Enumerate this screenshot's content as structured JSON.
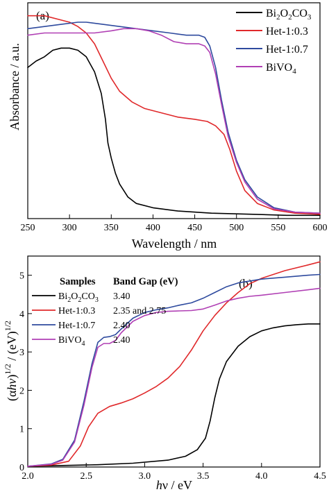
{
  "chart_data": [
    {
      "panel_label": "(a)",
      "type": "line",
      "xlabel": "Wavelength / nm",
      "ylabel": "Absorbance / a.u.",
      "xlim": [
        250,
        600
      ],
      "ylim": [
        0,
        1.0
      ],
      "x_ticks": [
        250,
        300,
        350,
        400,
        450,
        500,
        550,
        600
      ],
      "y_ticks": [],
      "grid": false,
      "legend_position": "top-right",
      "series": [
        {
          "name": "Bi2O2CO3",
          "name_base": "Bi",
          "name_sub1": "2",
          "name_mid": "O",
          "name_sub2": "2",
          "name_tail": "CO",
          "name_sub3": "3",
          "color": "#000000",
          "points": [
            [
              250,
              0.7
            ],
            [
              260,
              0.73
            ],
            [
              270,
              0.75
            ],
            [
              280,
              0.78
            ],
            [
              290,
              0.79
            ],
            [
              300,
              0.79
            ],
            [
              310,
              0.78
            ],
            [
              320,
              0.75
            ],
            [
              330,
              0.68
            ],
            [
              338,
              0.58
            ],
            [
              343,
              0.46
            ],
            [
              346,
              0.35
            ],
            [
              350,
              0.28
            ],
            [
              355,
              0.21
            ],
            [
              360,
              0.16
            ],
            [
              370,
              0.1
            ],
            [
              380,
              0.07
            ],
            [
              400,
              0.05
            ],
            [
              430,
              0.035
            ],
            [
              470,
              0.025
            ],
            [
              520,
              0.02
            ],
            [
              560,
              0.015
            ],
            [
              600,
              0.015
            ]
          ]
        },
        {
          "name": "Het-1:0.3",
          "color": "#e0282a",
          "points": [
            [
              250,
              0.94
            ],
            [
              270,
              0.94
            ],
            [
              290,
              0.92
            ],
            [
              300,
              0.91
            ],
            [
              310,
              0.89
            ],
            [
              320,
              0.86
            ],
            [
              330,
              0.81
            ],
            [
              340,
              0.73
            ],
            [
              350,
              0.65
            ],
            [
              360,
              0.59
            ],
            [
              375,
              0.54
            ],
            [
              390,
              0.51
            ],
            [
              410,
              0.49
            ],
            [
              430,
              0.47
            ],
            [
              450,
              0.46
            ],
            [
              465,
              0.45
            ],
            [
              475,
              0.43
            ],
            [
              485,
              0.39
            ],
            [
              492,
              0.32
            ],
            [
              500,
              0.22
            ],
            [
              510,
              0.13
            ],
            [
              525,
              0.07
            ],
            [
              545,
              0.04
            ],
            [
              570,
              0.025
            ],
            [
              600,
              0.02
            ]
          ]
        },
        {
          "name": "Het-1:0.7",
          "color": "#2e4a9e",
          "points": [
            [
              250,
              0.88
            ],
            [
              270,
              0.89
            ],
            [
              290,
              0.9
            ],
            [
              310,
              0.91
            ],
            [
              320,
              0.91
            ],
            [
              340,
              0.9
            ],
            [
              360,
              0.89
            ],
            [
              380,
              0.88
            ],
            [
              400,
              0.87
            ],
            [
              420,
              0.86
            ],
            [
              440,
              0.85
            ],
            [
              455,
              0.85
            ],
            [
              462,
              0.84
            ],
            [
              468,
              0.8
            ],
            [
              475,
              0.7
            ],
            [
              482,
              0.55
            ],
            [
              490,
              0.4
            ],
            [
              500,
              0.27
            ],
            [
              510,
              0.18
            ],
            [
              525,
              0.1
            ],
            [
              545,
              0.05
            ],
            [
              570,
              0.03
            ],
            [
              600,
              0.025
            ]
          ]
        },
        {
          "name": "BiVO4",
          "name_base": "BiVO",
          "name_sub1": "4",
          "color": "#b03fb4",
          "points": [
            [
              250,
              0.85
            ],
            [
              270,
              0.86
            ],
            [
              290,
              0.86
            ],
            [
              310,
              0.86
            ],
            [
              330,
              0.86
            ],
            [
              350,
              0.87
            ],
            [
              365,
              0.88
            ],
            [
              380,
              0.88
            ],
            [
              395,
              0.87
            ],
            [
              410,
              0.85
            ],
            [
              425,
              0.82
            ],
            [
              440,
              0.81
            ],
            [
              455,
              0.81
            ],
            [
              462,
              0.8
            ],
            [
              468,
              0.77
            ],
            [
              475,
              0.67
            ],
            [
              482,
              0.53
            ],
            [
              490,
              0.38
            ],
            [
              500,
              0.26
            ],
            [
              510,
              0.17
            ],
            [
              525,
              0.09
            ],
            [
              545,
              0.045
            ],
            [
              570,
              0.03
            ],
            [
              600,
              0.025
            ]
          ]
        }
      ]
    },
    {
      "panel_label": "(b)",
      "type": "line",
      "xlabel_italic": "h",
      "xlabel_rest": "ν / eV",
      "ylabel_alpha_part": "(α",
      "ylabel_hv": "hν",
      "ylabel_close": ")",
      "ylabel_sup1": "1/2",
      "ylabel_mid": " / (eV)",
      "ylabel_sup2": "1/2",
      "xlim": [
        2.0,
        4.5
      ],
      "ylim": [
        0,
        5.5
      ],
      "x_ticks": [
        "2.0",
        "2.5",
        "3.0",
        "3.5",
        "4.0",
        "4.5"
      ],
      "y_ticks": [
        "0",
        "1",
        "2",
        "3",
        "4",
        "5"
      ],
      "grid": false,
      "legend_position": "top-left",
      "table_header_samples": "Samples",
      "table_header_bandgap": "Band Gap (eV)",
      "series": [
        {
          "name": "Bi2O2CO3",
          "name_base": "Bi",
          "name_sub1": "2",
          "name_mid": "O",
          "name_sub2": "2",
          "name_tail": "CO",
          "name_sub3": "3",
          "band_gap": "3.40",
          "color": "#000000",
          "points": [
            [
              2.0,
              0.02
            ],
            [
              2.3,
              0.04
            ],
            [
              2.6,
              0.06
            ],
            [
              2.9,
              0.1
            ],
            [
              3.2,
              0.18
            ],
            [
              3.35,
              0.28
            ],
            [
              3.45,
              0.45
            ],
            [
              3.52,
              0.75
            ],
            [
              3.56,
              1.2
            ],
            [
              3.6,
              1.8
            ],
            [
              3.64,
              2.3
            ],
            [
              3.7,
              2.75
            ],
            [
              3.8,
              3.15
            ],
            [
              3.9,
              3.4
            ],
            [
              4.0,
              3.55
            ],
            [
              4.1,
              3.63
            ],
            [
              4.2,
              3.68
            ],
            [
              4.3,
              3.71
            ],
            [
              4.4,
              3.73
            ],
            [
              4.5,
              3.73
            ]
          ]
        },
        {
          "name": "Het-1:0.3",
          "band_gap": "2.35 and 2.75",
          "color": "#e0282a",
          "points": [
            [
              2.0,
              0.02
            ],
            [
              2.2,
              0.05
            ],
            [
              2.35,
              0.15
            ],
            [
              2.45,
              0.55
            ],
            [
              2.52,
              1.05
            ],
            [
              2.6,
              1.4
            ],
            [
              2.7,
              1.58
            ],
            [
              2.8,
              1.67
            ],
            [
              2.9,
              1.78
            ],
            [
              3.0,
              1.93
            ],
            [
              3.1,
              2.1
            ],
            [
              3.2,
              2.32
            ],
            [
              3.3,
              2.62
            ],
            [
              3.4,
              3.05
            ],
            [
              3.5,
              3.55
            ],
            [
              3.6,
              3.95
            ],
            [
              3.7,
              4.28
            ],
            [
              3.8,
              4.55
            ],
            [
              3.9,
              4.78
            ],
            [
              4.0,
              4.92
            ],
            [
              4.2,
              5.12
            ],
            [
              4.4,
              5.27
            ],
            [
              4.5,
              5.35
            ]
          ]
        },
        {
          "name": "Het-1:0.7",
          "band_gap": "2.40",
          "color": "#2e4a9e",
          "points": [
            [
              2.0,
              0.02
            ],
            [
              2.2,
              0.08
            ],
            [
              2.3,
              0.2
            ],
            [
              2.4,
              0.7
            ],
            [
              2.48,
              1.7
            ],
            [
              2.55,
              2.7
            ],
            [
              2.6,
              3.25
            ],
            [
              2.65,
              3.38
            ],
            [
              2.7,
              3.4
            ],
            [
              2.75,
              3.45
            ],
            [
              2.8,
              3.6
            ],
            [
              2.9,
              3.88
            ],
            [
              3.0,
              4.03
            ],
            [
              3.1,
              4.1
            ],
            [
              3.2,
              4.15
            ],
            [
              3.3,
              4.22
            ],
            [
              3.4,
              4.28
            ],
            [
              3.5,
              4.4
            ],
            [
              3.6,
              4.55
            ],
            [
              3.7,
              4.7
            ],
            [
              3.8,
              4.8
            ],
            [
              3.9,
              4.85
            ],
            [
              4.0,
              4.9
            ],
            [
              4.2,
              4.95
            ],
            [
              4.4,
              5.0
            ],
            [
              4.5,
              5.02
            ]
          ]
        },
        {
          "name": "BiVO4",
          "name_base": "BiVO",
          "name_sub1": "4",
          "band_gap": "2.40",
          "color": "#b03fb4",
          "points": [
            [
              2.0,
              0.02
            ],
            [
              2.2,
              0.07
            ],
            [
              2.3,
              0.18
            ],
            [
              2.4,
              0.65
            ],
            [
              2.48,
              1.6
            ],
            [
              2.55,
              2.6
            ],
            [
              2.6,
              3.12
            ],
            [
              2.65,
              3.22
            ],
            [
              2.7,
              3.22
            ],
            [
              2.75,
              3.3
            ],
            [
              2.8,
              3.5
            ],
            [
              2.9,
              3.8
            ],
            [
              3.0,
              3.95
            ],
            [
              3.1,
              4.03
            ],
            [
              3.2,
              4.06
            ],
            [
              3.3,
              4.07
            ],
            [
              3.4,
              4.08
            ],
            [
              3.5,
              4.12
            ],
            [
              3.6,
              4.22
            ],
            [
              3.7,
              4.33
            ],
            [
              3.8,
              4.4
            ],
            [
              3.9,
              4.45
            ],
            [
              4.0,
              4.48
            ],
            [
              4.2,
              4.55
            ],
            [
              4.4,
              4.62
            ],
            [
              4.5,
              4.66
            ]
          ]
        }
      ]
    }
  ]
}
